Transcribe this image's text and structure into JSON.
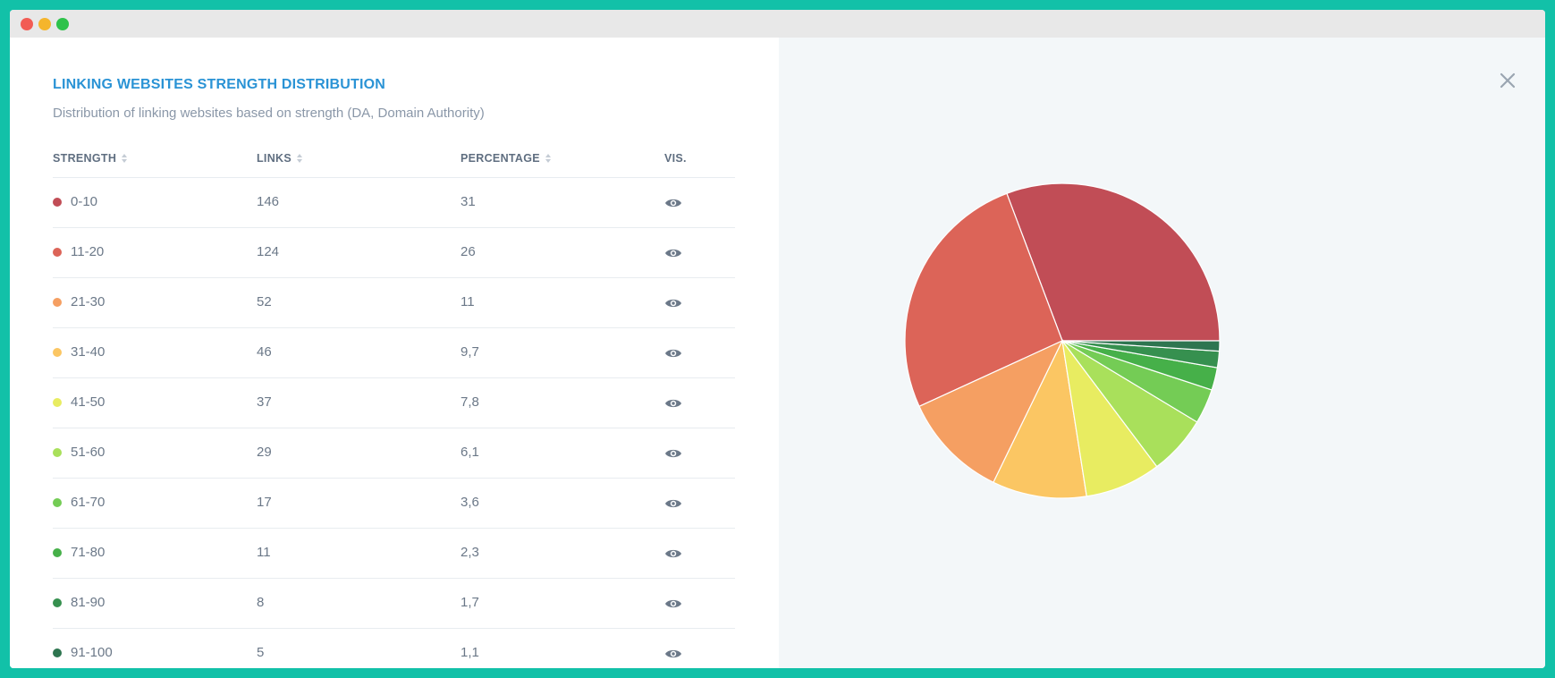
{
  "window": {
    "controls": {
      "close_color": "#f25c54",
      "minimize_color": "#f5b52c",
      "maximize_color": "#2ec24a"
    }
  },
  "panel": {
    "title": "LINKING WEBSITES STRENGTH DISTRIBUTION",
    "title_color": "#2a93d5",
    "subtitle": "Distribution of linking websites based on strength (DA, Domain Authority)",
    "close_icon": "close-icon"
  },
  "table": {
    "headers": {
      "strength": "STRENGTH",
      "links": "LINKS",
      "percentage": "PERCENTAGE",
      "vis": "VIS."
    },
    "rows": [
      {
        "strength": "0-10",
        "links": "146",
        "percentage": "31",
        "color": "#c14d56"
      },
      {
        "strength": "11-20",
        "links": "124",
        "percentage": "26",
        "color": "#dc6458"
      },
      {
        "strength": "21-30",
        "links": "52",
        "percentage": "11",
        "color": "#f59f62"
      },
      {
        "strength": "31-40",
        "links": "46",
        "percentage": "9,7",
        "color": "#fbc663"
      },
      {
        "strength": "41-50",
        "links": "37",
        "percentage": "7,8",
        "color": "#e8ec61"
      },
      {
        "strength": "51-60",
        "links": "29",
        "percentage": "6,1",
        "color": "#a9e05b"
      },
      {
        "strength": "61-70",
        "links": "17",
        "percentage": "3,6",
        "color": "#74cc55"
      },
      {
        "strength": "71-80",
        "links": "11",
        "percentage": "2,3",
        "color": "#46b049"
      },
      {
        "strength": "81-90",
        "links": "8",
        "percentage": "1,7",
        "color": "#36904f"
      },
      {
        "strength": "91-100",
        "links": "5",
        "percentage": "1,1",
        "color": "#2e7550"
      }
    ]
  },
  "chart_data": {
    "type": "pie",
    "categories": [
      "0-10",
      "11-20",
      "21-30",
      "31-40",
      "41-50",
      "51-60",
      "61-70",
      "71-80",
      "81-90",
      "91-100"
    ],
    "values": [
      146,
      124,
      52,
      46,
      37,
      29,
      17,
      11,
      8,
      5
    ],
    "colors": [
      "#c14d56",
      "#dc6458",
      "#f59f62",
      "#fbc663",
      "#e8ec61",
      "#a9e05b",
      "#74cc55",
      "#46b049",
      "#36904f",
      "#2e7550"
    ]
  }
}
